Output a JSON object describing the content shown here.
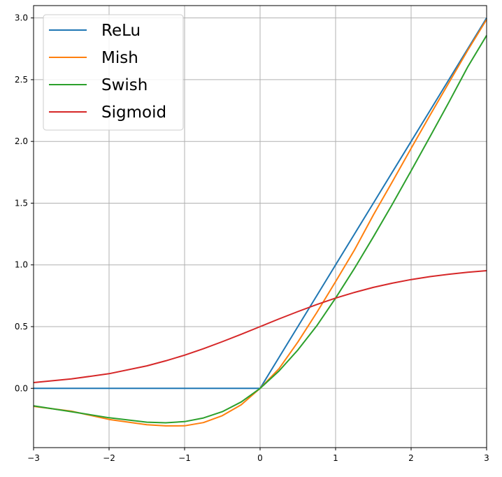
{
  "chart_data": {
    "type": "line",
    "title": "",
    "xlabel": "",
    "ylabel": "",
    "xlim": [
      -3,
      3
    ],
    "ylim": [
      -0.48,
      3.1
    ],
    "grid": true,
    "legend_position": "top-left",
    "x_ticks": [
      "−3",
      "−2",
      "−1",
      "0",
      "1",
      "2",
      "3"
    ],
    "x_tick_values": [
      -3,
      -2,
      -1,
      0,
      1,
      2,
      3
    ],
    "y_ticks": [
      "0.0",
      "0.5",
      "1.0",
      "1.5",
      "2.0",
      "2.5",
      "3.0"
    ],
    "y_tick_values": [
      0,
      0.5,
      1,
      1.5,
      2,
      2.5,
      3
    ],
    "x": [
      -3,
      -2.5,
      -2,
      -1.5,
      -1.25,
      -1,
      -0.75,
      -0.5,
      -0.25,
      0,
      0.25,
      0.5,
      0.75,
      1,
      1.25,
      1.5,
      1.75,
      2,
      2.25,
      2.5,
      2.75,
      3
    ],
    "series": [
      {
        "name": "ReLu",
        "color": "#1f77b4",
        "values": [
          0,
          0,
          0,
          0,
          0,
          0,
          0,
          0,
          0,
          0,
          0.25,
          0.5,
          0.75,
          1.0,
          1.25,
          1.5,
          1.75,
          2.0,
          2.25,
          2.5,
          2.75,
          3.0
        ]
      },
      {
        "name": "Mish",
        "color": "#ff7f0e",
        "values": [
          -0.146,
          -0.185,
          -0.252,
          -0.294,
          -0.304,
          -0.303,
          -0.277,
          -0.221,
          -0.133,
          0,
          0.159,
          0.375,
          0.613,
          0.865,
          1.121,
          1.404,
          1.672,
          1.944,
          2.211,
          2.475,
          2.738,
          2.987
        ]
      },
      {
        "name": "Swish",
        "color": "#2ca02c",
        "values": [
          -0.142,
          -0.189,
          -0.238,
          -0.274,
          -0.279,
          -0.269,
          -0.24,
          -0.189,
          -0.11,
          0,
          0.14,
          0.311,
          0.506,
          0.731,
          0.972,
          1.227,
          1.49,
          1.762,
          2.038,
          2.317,
          2.604,
          2.858
        ]
      },
      {
        "name": "Sigmoid",
        "color": "#d62728",
        "values": [
          0.047,
          0.076,
          0.119,
          0.182,
          0.223,
          0.269,
          0.321,
          0.378,
          0.438,
          0.5,
          0.562,
          0.622,
          0.679,
          0.731,
          0.777,
          0.818,
          0.852,
          0.881,
          0.905,
          0.924,
          0.94,
          0.953
        ]
      }
    ]
  }
}
